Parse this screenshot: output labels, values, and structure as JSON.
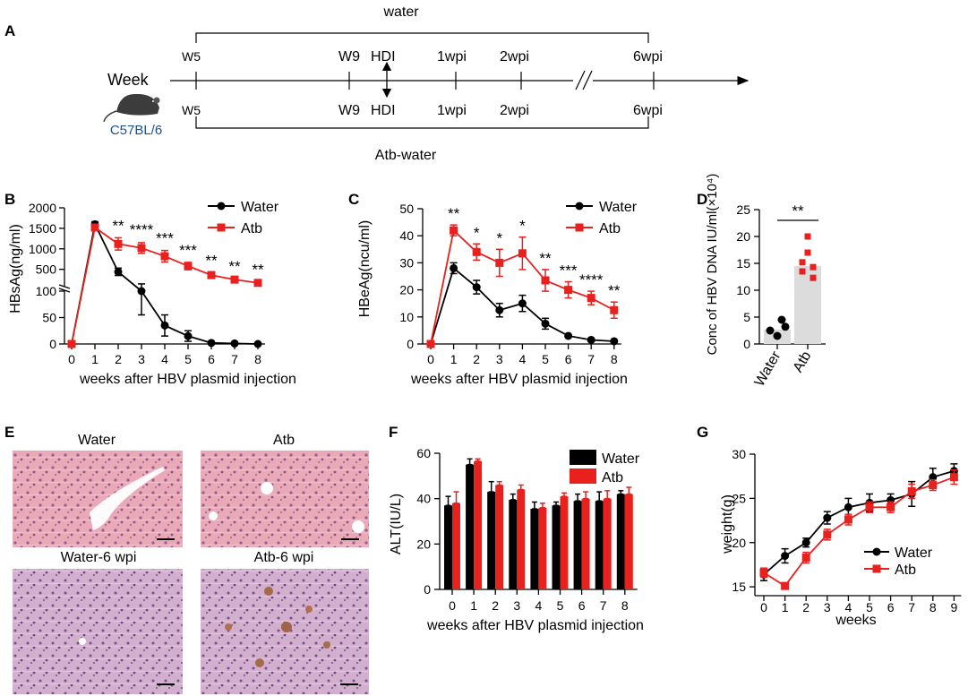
{
  "colors": {
    "water": "#000000",
    "atb": "#e8201e",
    "bar_gray": "#dcdcdc",
    "mouse_label": "#1f4e8c"
  },
  "panel_labels": {
    "A": "A",
    "B": "B",
    "C": "C",
    "D": "D",
    "E": "E",
    "F": "F",
    "G": "G"
  },
  "panelA": {
    "week_label": "Week",
    "strain": "C57BL/6",
    "water_label": "water",
    "atb_label": "Atb-water",
    "top_ticks": [
      "W5",
      "W9",
      "HDI",
      "1wpi",
      "2wpi",
      "6wpi"
    ],
    "bottom_ticks": [
      "W5",
      "W9",
      "HDI",
      "1wpi",
      "2wpi",
      "6wpi"
    ]
  },
  "panelE": {
    "images": [
      {
        "label": "Water"
      },
      {
        "label": "Atb"
      },
      {
        "label": "Water-6 wpi"
      },
      {
        "label": "Atb-6 wpi"
      }
    ]
  },
  "chart_data": [
    {
      "id": "B",
      "type": "line",
      "ylabel": "HBsAg(ng/ml)",
      "xlabel": "weeks after HBV plasmid injection",
      "x": [
        0,
        1,
        2,
        3,
        4,
        5,
        6,
        7,
        8
      ],
      "ylim_lower": [
        0,
        100
      ],
      "ylim_upper": [
        100,
        2000
      ],
      "yticks": [
        "0",
        "50",
        "100",
        "500",
        "1000",
        "1500",
        "2000"
      ],
      "series": [
        {
          "name": "Water",
          "values": [
            0,
            1600,
            440,
            100,
            35,
            15,
            2,
            1,
            0
          ],
          "err": [
            0,
            60,
            90,
            45,
            20,
            10,
            2,
            1,
            1
          ]
        },
        {
          "name": "Atb",
          "values": [
            0,
            1520,
            1120,
            1020,
            820,
            580,
            360,
            250,
            170
          ],
          "err": [
            0,
            80,
            150,
            130,
            140,
            90,
            60,
            30,
            25
          ]
        }
      ],
      "significance": [
        "",
        "",
        "**",
        "****",
        "***",
        "***",
        "**",
        "**",
        "**"
      ]
    },
    {
      "id": "C",
      "type": "line",
      "ylabel": "HBeAg(ncu/ml)",
      "xlabel": "weeks after HBV plasmid injection",
      "x": [
        0,
        1,
        2,
        3,
        4,
        5,
        6,
        7,
        8
      ],
      "ylim": [
        0,
        50
      ],
      "yticks": [
        "0",
        "10",
        "20",
        "30",
        "40",
        "50"
      ],
      "series": [
        {
          "name": "Water",
          "values": [
            0,
            28,
            21,
            12.5,
            15,
            7.5,
            3,
            1.5,
            1
          ],
          "err": [
            0,
            2,
            2.5,
            2.5,
            3,
            2,
            0.5,
            0.5,
            0.5
          ]
        },
        {
          "name": "Atb",
          "values": [
            0,
            42,
            34,
            30,
            33.5,
            23.5,
            20,
            17,
            12.5
          ],
          "err": [
            0,
            2,
            3,
            5,
            6,
            4,
            3,
            2.5,
            3
          ]
        }
      ],
      "significance": [
        "",
        "**",
        "*",
        "*",
        "*",
        "**",
        "***",
        "****",
        "**"
      ]
    },
    {
      "id": "D",
      "type": "bar",
      "ylabel": "Conc of HBV DNA IU/ml(×10⁴)",
      "categories": [
        "Water",
        "Atb"
      ],
      "values": [
        2.7,
        14.5
      ],
      "points": [
        [
          2.5,
          4.5,
          1.5,
          3.2
        ],
        [
          20,
          17,
          15.2,
          14.3,
          13.5,
          12.3
        ]
      ],
      "ylim": [
        0,
        25
      ],
      "yticks": [
        "0",
        "5",
        "10",
        "15",
        "20",
        "25"
      ],
      "significance": "**"
    },
    {
      "id": "F",
      "type": "bar",
      "ylabel": "ALT(IU/L)",
      "xlabel": "weeks after HBV plasmid injection",
      "categories": [
        "0",
        "1",
        "2",
        "3",
        "4",
        "5",
        "6",
        "7",
        "8"
      ],
      "ylim": [
        0,
        60
      ],
      "yticks": [
        "0",
        "20",
        "40",
        "60"
      ],
      "series": [
        {
          "name": "Water",
          "values": [
            37,
            55,
            43,
            39.5,
            35.5,
            37,
            39,
            39,
            42
          ],
          "err": [
            4,
            2.5,
            4.5,
            2.5,
            3,
            1.5,
            3,
            4,
            1.5
          ]
        },
        {
          "name": "Atb",
          "values": [
            38,
            56.5,
            46,
            44,
            36,
            41,
            40,
            40,
            42
          ],
          "err": [
            5,
            1,
            1.5,
            2,
            2,
            1.5,
            3,
            3.5,
            3
          ]
        }
      ]
    },
    {
      "id": "G",
      "type": "line",
      "ylabel": "weight(g)",
      "xlabel": "weeks",
      "x": [
        0,
        1,
        2,
        3,
        4,
        5,
        6,
        7,
        8,
        9
      ],
      "ylim": [
        14,
        30
      ],
      "yticks": [
        "15",
        "20",
        "25",
        "30"
      ],
      "series": [
        {
          "name": "Water",
          "values": [
            16.4,
            18.5,
            20.0,
            22.8,
            24.0,
            24.5,
            24.8,
            25.5,
            27.4,
            28.1
          ],
          "err": [
            0.7,
            0.8,
            0.5,
            0.7,
            1.0,
            1.0,
            0.7,
            1.4,
            1.0,
            0.8
          ]
        },
        {
          "name": "Atb",
          "values": [
            16.6,
            15.1,
            18.3,
            20.9,
            22.6,
            24.0,
            24.0,
            25.8,
            26.5,
            27.4
          ],
          "err": [
            0.5,
            0.3,
            0.6,
            0.6,
            0.6,
            0.6,
            0.6,
            0.8,
            0.6,
            0.8
          ]
        }
      ]
    }
  ]
}
